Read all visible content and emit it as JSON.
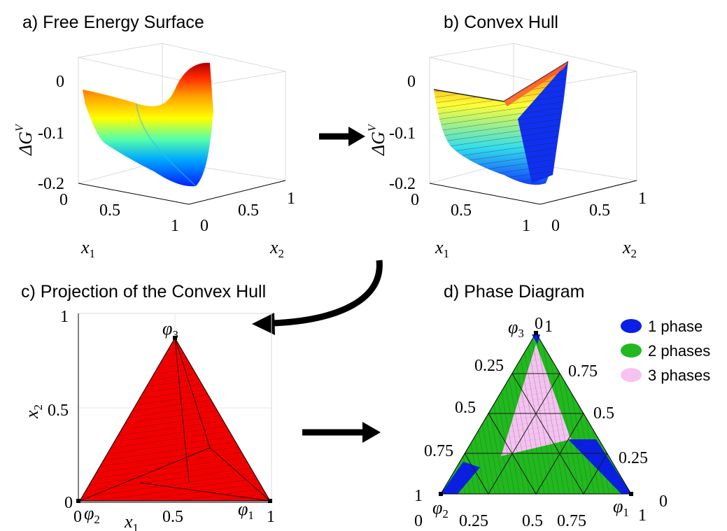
{
  "panels": {
    "a": {
      "title": "a) Free Energy Surface",
      "zlabel": "ΔG",
      "zlabel_sup": "V",
      "zticks": [
        "0",
        "-0.1",
        "-0.2"
      ],
      "x1label": "x",
      "x1sub": "1",
      "x1ticks": [
        "0",
        "0.5",
        "1"
      ],
      "x2label": "x",
      "x2sub": "2",
      "x2ticks": [
        "0",
        "0.5",
        "1"
      ]
    },
    "b": {
      "title": "b) Convex Hull",
      "zlabel": "ΔG",
      "zlabel_sup": "V",
      "zticks": [
        "0",
        "-0.1",
        "-0.2"
      ],
      "x1label": "x",
      "x1sub": "1",
      "x1ticks": [
        "0",
        "0.5",
        "1"
      ],
      "x2label": "x",
      "x2sub": "2",
      "x2ticks": [
        "0",
        "0.5",
        "1"
      ]
    },
    "c": {
      "title": "c) Projection of the Convex Hull",
      "yticks": [
        "1",
        "0.5",
        "0"
      ],
      "ylabel": "x",
      "ylabel_sub": "2",
      "xticks": [
        "0",
        "0.5",
        "1"
      ],
      "xlabel": "x",
      "xlabel_sub": "1",
      "vertices": [
        {
          "sym": "φ",
          "sub": "3"
        },
        {
          "sym": "φ",
          "sub": "2"
        },
        {
          "sym": "φ",
          "sub": "1"
        }
      ]
    },
    "d": {
      "title": "d) Phase Diagram",
      "left_ticks": [
        "0",
        "0.25",
        "0.5",
        "0.75",
        "1"
      ],
      "right_ticks": [
        "1",
        "0.75",
        "0.5",
        "0.25",
        "0"
      ],
      "bottom_ticks": [
        "0",
        "0.25",
        "0.5",
        "0.75",
        "1"
      ],
      "vertices": [
        {
          "sym": "φ",
          "sub": "3"
        },
        {
          "sym": "φ",
          "sub": "2"
        },
        {
          "sym": "φ",
          "sub": "1"
        }
      ],
      "legend": [
        {
          "label": "1 phase",
          "color": "#0a1ee6"
        },
        {
          "label": "2 phases",
          "color": "#22b81f"
        },
        {
          "label": "3 phases",
          "color": "#f6c2f2"
        }
      ]
    }
  },
  "colors": {
    "hull_fill": "#f20000",
    "single_phase": "#0a1ee6",
    "two_phase": "#22b81f",
    "three_phase": "#f6c2f2"
  }
}
